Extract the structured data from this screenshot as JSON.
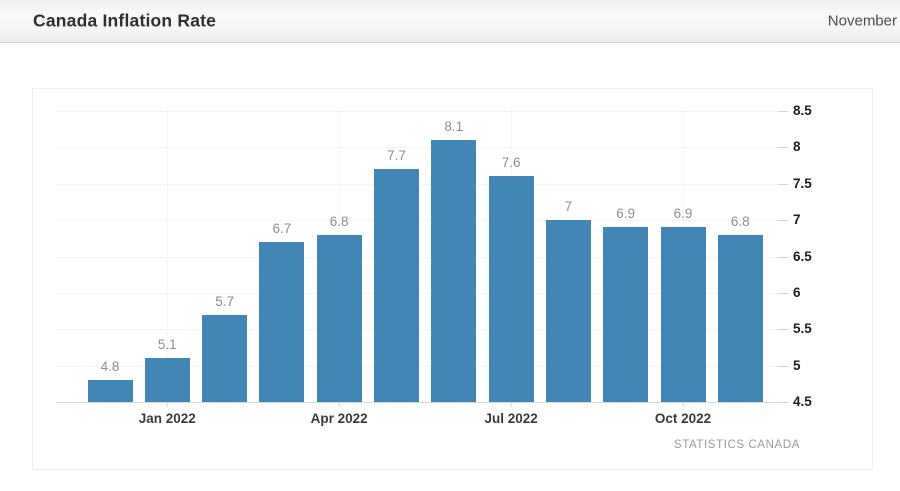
{
  "header": {
    "title": "Canada Inflation Rate",
    "period_label": "November"
  },
  "chart_data": {
    "type": "bar",
    "title": "Canada Inflation Rate",
    "unit": "percent",
    "values": [
      4.8,
      5.1,
      5.7,
      6.7,
      6.8,
      7.7,
      8.1,
      7.6,
      7,
      6.9,
      6.9,
      6.8
    ],
    "bar_labels": [
      "4.8",
      "5.1",
      "5.7",
      "6.7",
      "6.8",
      "7.7",
      "8.1",
      "7.6",
      "7",
      "6.9",
      "6.9",
      "6.8"
    ],
    "x_ticks": [
      {
        "index": 1,
        "label": "Jan 2022"
      },
      {
        "index": 4,
        "label": "Apr 2022"
      },
      {
        "index": 7,
        "label": "Jul 2022"
      },
      {
        "index": 10,
        "label": "Oct 2022"
      }
    ],
    "y_ticks": [
      "8.5",
      "8",
      "7.5",
      "7",
      "6.5",
      "6",
      "5.5",
      "5",
      "4.5"
    ],
    "ylim": [
      4.5,
      8.5
    ],
    "grid": true,
    "legend": false,
    "bar_color": "#4186b5",
    "source": "STATISTICS CANADA"
  }
}
